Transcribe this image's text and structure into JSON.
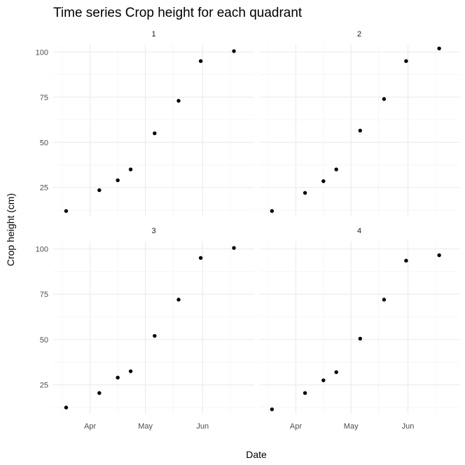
{
  "chart_data": {
    "type": "scatter",
    "title": "Time series Crop height for each quadrant",
    "xlabel": "Date",
    "ylabel": "Crop height (cm)",
    "x_ticks": [
      "Apr",
      "May",
      "Jun"
    ],
    "x_tick_dates": [
      "2023-04-01",
      "2023-05-01",
      "2023-06-01"
    ],
    "y_ticks": [
      25,
      50,
      75,
      100
    ],
    "ylim": [
      9,
      104
    ],
    "xlim": [
      "2023-03-12",
      "2023-06-29"
    ],
    "grid": true,
    "panels": [
      {
        "label": "1",
        "points": [
          {
            "x": "2023-03-19",
            "y": 12
          },
          {
            "x": "2023-04-06",
            "y": 23.5
          },
          {
            "x": "2023-04-16",
            "y": 29
          },
          {
            "x": "2023-04-23",
            "y": 35
          },
          {
            "x": "2023-05-06",
            "y": 55
          },
          {
            "x": "2023-05-19",
            "y": 73
          },
          {
            "x": "2023-05-31",
            "y": 95
          },
          {
            "x": "2023-06-18",
            "y": 100.5
          }
        ]
      },
      {
        "label": "2",
        "points": [
          {
            "x": "2023-03-19",
            "y": 12
          },
          {
            "x": "2023-04-06",
            "y": 22
          },
          {
            "x": "2023-04-16",
            "y": 28.5
          },
          {
            "x": "2023-04-23",
            "y": 35
          },
          {
            "x": "2023-05-06",
            "y": 56.5
          },
          {
            "x": "2023-05-19",
            "y": 74
          },
          {
            "x": "2023-05-31",
            "y": 95
          },
          {
            "x": "2023-06-18",
            "y": 102
          }
        ]
      },
      {
        "label": "3",
        "points": [
          {
            "x": "2023-03-19",
            "y": 12.5
          },
          {
            "x": "2023-04-06",
            "y": 20.5
          },
          {
            "x": "2023-04-16",
            "y": 29
          },
          {
            "x": "2023-04-23",
            "y": 32.5
          },
          {
            "x": "2023-05-06",
            "y": 52
          },
          {
            "x": "2023-05-19",
            "y": 72
          },
          {
            "x": "2023-05-31",
            "y": 95
          },
          {
            "x": "2023-06-18",
            "y": 100.5
          }
        ]
      },
      {
        "label": "4",
        "points": [
          {
            "x": "2023-03-19",
            "y": 11.5
          },
          {
            "x": "2023-04-06",
            "y": 20.5
          },
          {
            "x": "2023-04-16",
            "y": 27.5
          },
          {
            "x": "2023-04-23",
            "y": 32
          },
          {
            "x": "2023-05-06",
            "y": 50.5
          },
          {
            "x": "2023-05-19",
            "y": 72
          },
          {
            "x": "2023-05-31",
            "y": 93.5
          },
          {
            "x": "2023-06-18",
            "y": 96.5
          }
        ]
      }
    ]
  }
}
